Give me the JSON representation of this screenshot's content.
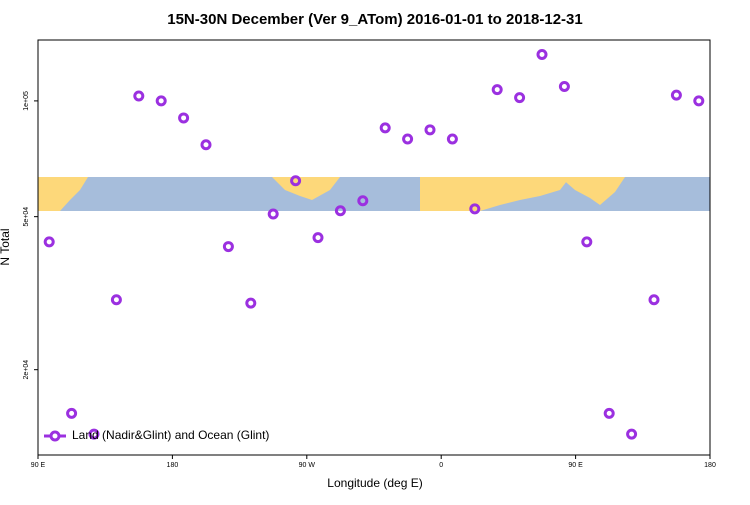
{
  "chart_data": {
    "type": "scatter",
    "title": "15N-30N December (Ver 9_ATom)   2016-01-01 to 2018-12-31",
    "xlabel": "Longitude (deg E)",
    "ylabel": "N Total",
    "log_y": true,
    "xlim": [
      90,
      540
    ],
    "ylim": [
      12000,
      144000
    ],
    "xticks": [
      {
        "value": 90,
        "label": "90 E"
      },
      180,
      {
        "value": 270,
        "label": "90 W"
      },
      {
        "value": 360,
        "label": "0"
      },
      {
        "value": 450,
        "label": "90 E"
      },
      {
        "value": 540,
        "label": "180"
      }
    ],
    "yticks": [
      {
        "value": 100000,
        "label": "1e+05"
      },
      {
        "value": 50000,
        "label": "5e+04"
      },
      {
        "value": 20000,
        "label": "2e+04"
      }
    ],
    "legend": "bottom-left",
    "series": [
      {
        "name": "Land (Nadir&Glint) and Ocean (Glint)",
        "color": "#9b30e0",
        "x": [
          97.5,
          112.5,
          127.5,
          142.5,
          157.5,
          172.5,
          187.5,
          202.5,
          217.5,
          232.5,
          247.5,
          262.5,
          277.5,
          292.5,
          307.5,
          322.5,
          337.5,
          352.5,
          367.5,
          382.5,
          397.5,
          412.5,
          427.5,
          442.5,
          457.5,
          472.5,
          487.5,
          502.5,
          517.5,
          532.5
        ],
        "values": [
          43000,
          15400,
          13600,
          30400,
          103000,
          100000,
          90300,
          76900,
          41800,
          29800,
          50800,
          62000,
          44100,
          51800,
          55000,
          85100,
          79600,
          84100,
          79600,
          52400,
          107000,
          102000,
          132000,
          109000,
          43000,
          15400,
          13600,
          30400,
          103500,
          100000
        ]
      }
    ]
  }
}
